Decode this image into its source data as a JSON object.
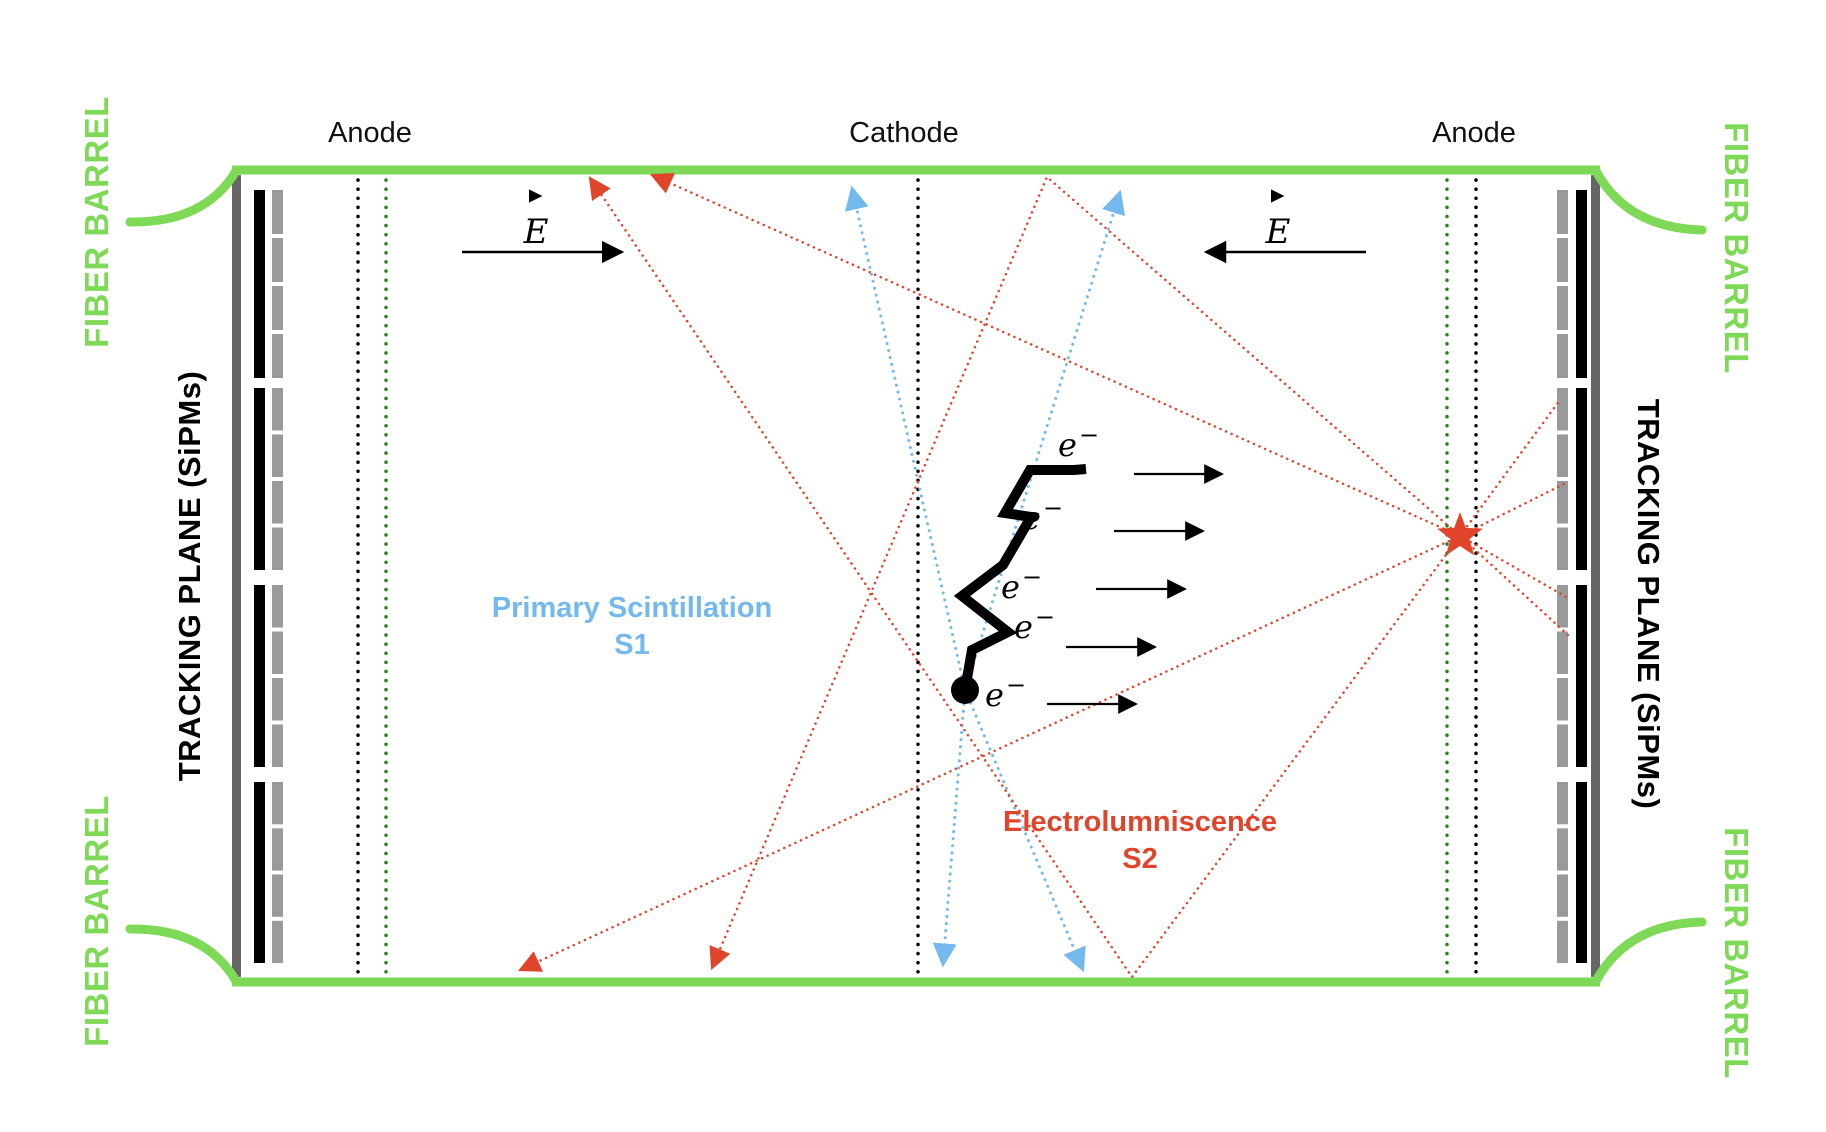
{
  "electrodes": {
    "anode_left": "Anode",
    "cathode": "Cathode",
    "anode_right": "Anode"
  },
  "field": {
    "left_label": "E",
    "right_label": "E"
  },
  "barrels": {
    "top_left": "FIBER BARREL",
    "bottom_left": "FIBER BARREL",
    "top_right": "FIBER BARREL",
    "bottom_right": "FIBER BARREL"
  },
  "tracking": {
    "left": "TRACKING PLANE (SiPMs)",
    "right": "TRACKING PLANE (SiPMs)"
  },
  "signals": {
    "s1_line1": "Primary Scintillation",
    "s1_line2": "S1",
    "s2_line1": "Electrolumniscence",
    "s2_line2": "S2"
  },
  "electrons": {
    "symbol": "e",
    "charge": "−",
    "count": 5
  },
  "colors": {
    "barrel_green": "#7ed957",
    "s1_blue": "#73b9ee",
    "s2_red": "#e0452b",
    "mesh_green": "#2e7d1e",
    "sipm_dark": "#000000",
    "sipm_light": "#9a9a9a"
  }
}
